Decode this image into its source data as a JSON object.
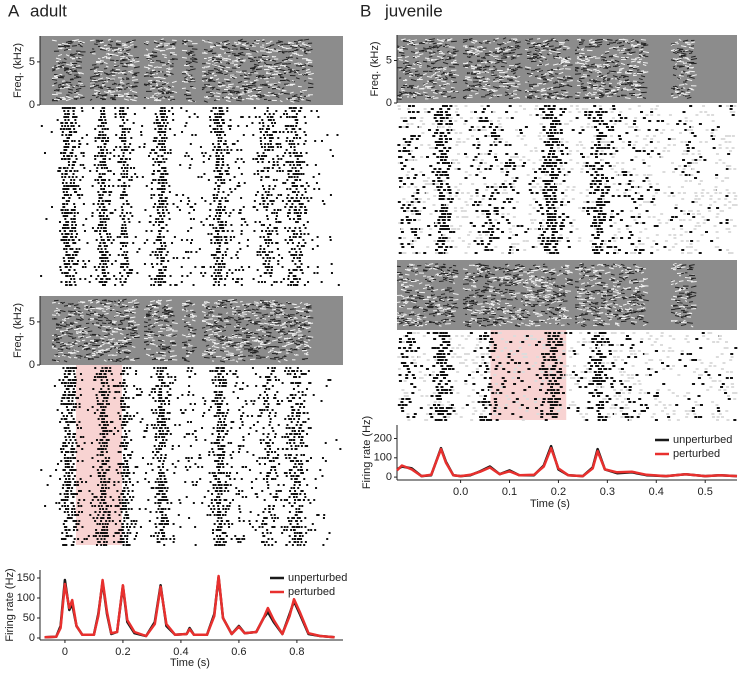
{
  "panels": [
    {
      "label": "A",
      "title": "adult"
    },
    {
      "label": "B",
      "title": "juvenile"
    }
  ],
  "chart_data": [
    {
      "type": "spectrogram",
      "y_label": "Freq. (kHz)",
      "ylim": [
        0,
        8
      ],
      "yticks": [
        0,
        5
      ]
    },
    {
      "type": "spectrogram",
      "y_label": "Freq. (kHz)",
      "ylim": [
        0,
        8
      ],
      "yticks": [
        0,
        5
      ]
    },
    {
      "type": "line",
      "y_label": "Firing rate (Hz)",
      "x_label": "Time (s)",
      "xlim": [
        -0.086,
        0.959
      ],
      "xticks": [
        0,
        0.2,
        0.4,
        0.6,
        0.8
      ],
      "ylim": [
        -5,
        170
      ],
      "yticks": [
        0,
        50,
        100,
        150
      ],
      "perturbation_window": [
        0.038,
        0.197
      ],
      "x": [
        -0.07,
        -0.03,
        -0.015,
        0,
        0.015,
        0.025,
        0.04,
        0.06,
        0.1,
        0.115,
        0.13,
        0.145,
        0.16,
        0.18,
        0.2,
        0.215,
        0.24,
        0.28,
        0.31,
        0.33,
        0.35,
        0.38,
        0.42,
        0.43,
        0.445,
        0.49,
        0.515,
        0.53,
        0.545,
        0.575,
        0.6,
        0.62,
        0.66,
        0.685,
        0.7,
        0.72,
        0.75,
        0.775,
        0.79,
        0.81,
        0.84,
        0.88,
        0.93
      ],
      "series": [
        {
          "name": "unperturbed",
          "color": "#1a1a1a",
          "values": [
            2,
            3,
            30,
            145,
            70,
            85,
            30,
            8,
            8,
            60,
            140,
            60,
            10,
            15,
            130,
            40,
            12,
            5,
            40,
            132,
            30,
            8,
            10,
            25,
            8,
            8,
            60,
            152,
            50,
            10,
            30,
            12,
            15,
            50,
            65,
            40,
            10,
            60,
            92,
            60,
            10,
            5,
            2
          ]
        },
        {
          "name": "perturbed",
          "color": "#e8302e",
          "values": [
            2,
            3,
            25,
            135,
            75,
            95,
            30,
            8,
            8,
            55,
            145,
            65,
            12,
            15,
            132,
            45,
            15,
            5,
            35,
            128,
            35,
            8,
            10,
            22,
            8,
            8,
            55,
            155,
            50,
            10,
            28,
            12,
            15,
            50,
            75,
            45,
            10,
            55,
            97,
            65,
            12,
            5,
            2
          ]
        }
      ]
    },
    {
      "type": "spectrogram",
      "y_label": "Freq. (kHz)",
      "ylim": [
        0,
        8
      ],
      "yticks": [
        0,
        5
      ]
    },
    {
      "type": "spectrogram"
    },
    {
      "type": "line",
      "y_label": "Firing rate (Hz)",
      "x_label": "Time (s)",
      "xlim": [
        -0.13,
        0.565
      ],
      "xticks": [
        {
          "value": 0,
          "label": "0.0"
        },
        0.1,
        0.2,
        0.3,
        0.4,
        0.5
      ],
      "ylim": [
        -15,
        270
      ],
      "yticks": [
        0,
        100,
        200
      ],
      "perturbation_window": [
        0.061,
        0.216
      ],
      "x": [
        -0.13,
        -0.12,
        -0.1,
        -0.08,
        -0.06,
        -0.04,
        -0.03,
        -0.015,
        0,
        0.02,
        0.04,
        0.06,
        0.08,
        0.1,
        0.12,
        0.15,
        0.17,
        0.185,
        0.2,
        0.22,
        0.25,
        0.27,
        0.28,
        0.295,
        0.32,
        0.35,
        0.38,
        0.42,
        0.46,
        0.5,
        0.53,
        0.565
      ],
      "series": [
        {
          "name": "unperturbed",
          "color": "#1a1a1a",
          "values": [
            40,
            55,
            45,
            5,
            10,
            150,
            80,
            10,
            5,
            10,
            30,
            55,
            15,
            35,
            10,
            10,
            60,
            160,
            40,
            10,
            5,
            50,
            145,
            40,
            20,
            25,
            10,
            5,
            15,
            5,
            10,
            5
          ]
        },
        {
          "name": "perturbed",
          "color": "#e8302e",
          "values": [
            35,
            60,
            40,
            5,
            12,
            145,
            75,
            10,
            5,
            12,
            28,
            50,
            15,
            30,
            10,
            12,
            55,
            150,
            45,
            10,
            5,
            45,
            135,
            40,
            25,
            28,
            12,
            5,
            15,
            5,
            10,
            5
          ]
        }
      ]
    }
  ]
}
